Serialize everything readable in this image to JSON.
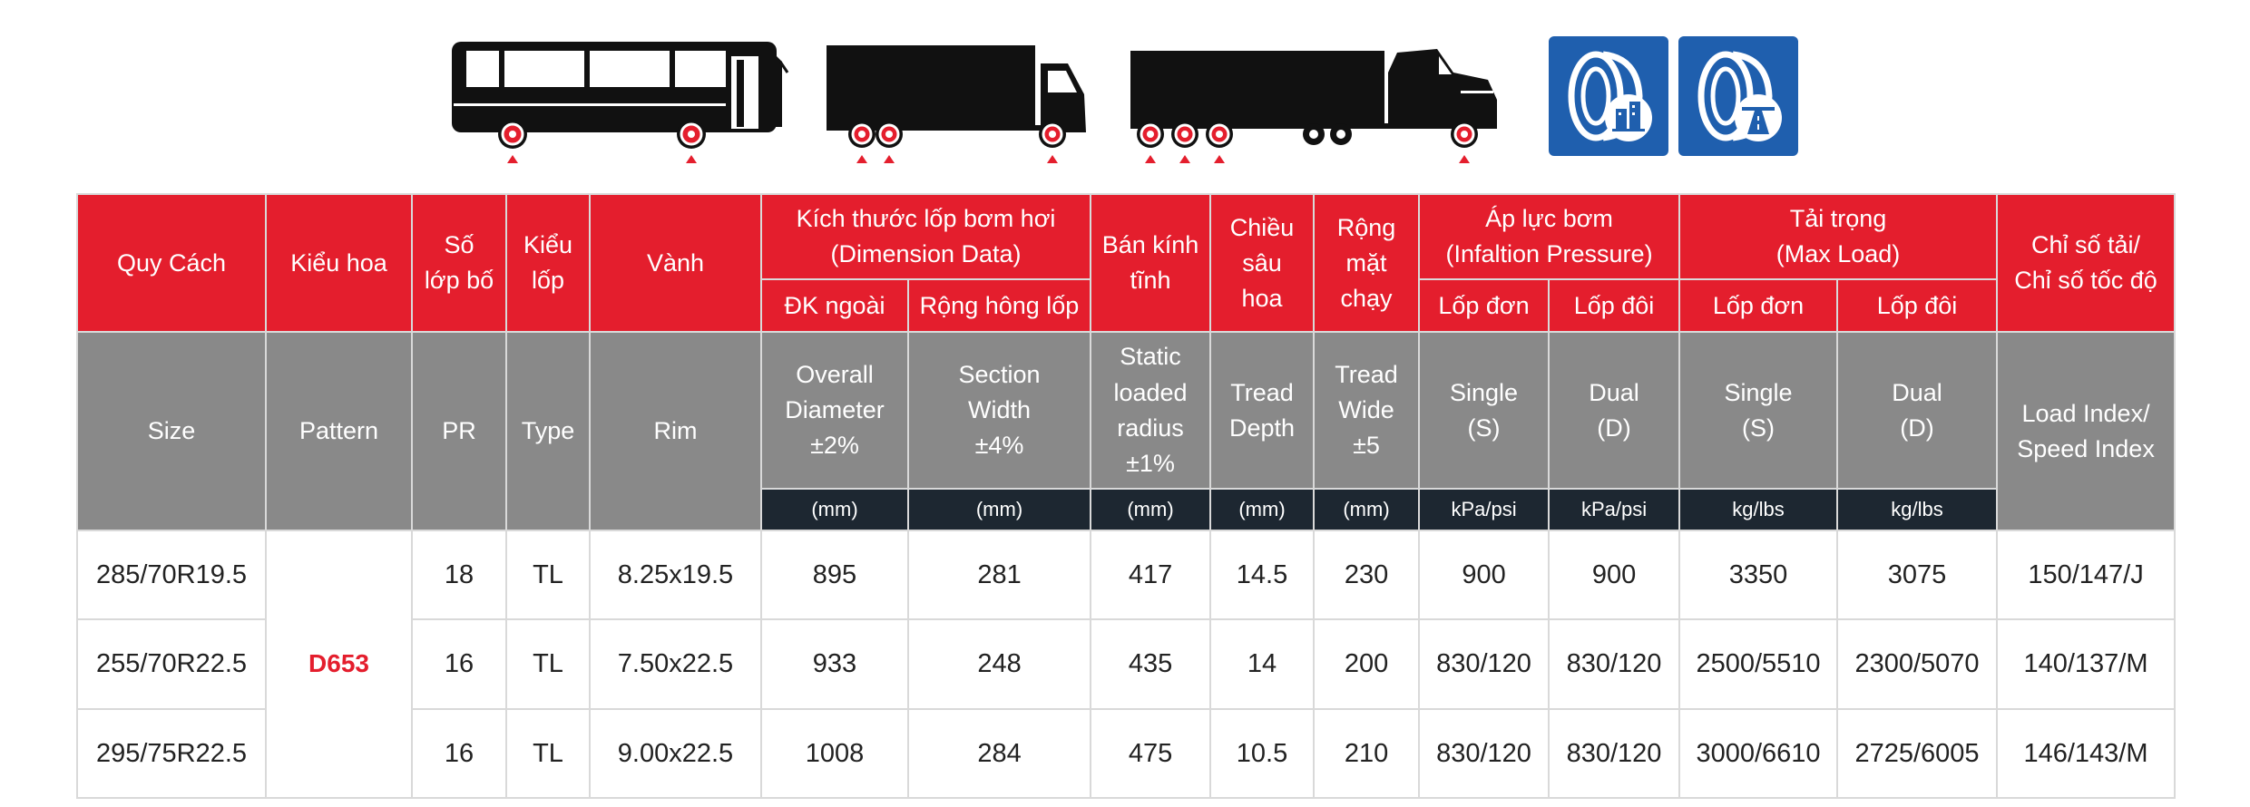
{
  "vehicle_icons": [
    {
      "name": "bus-icon"
    },
    {
      "name": "box-truck-icon"
    },
    {
      "name": "semi-trailer-truck-icon"
    }
  ],
  "usage_icons": [
    {
      "name": "tire-city-icon"
    },
    {
      "name": "tire-highway-icon"
    }
  ],
  "colors": {
    "header_red": "#e41e2d",
    "header_gray": "#898989",
    "unit_dark": "#1d2731",
    "badge_blue": "#1f5fae",
    "pattern_red": "#e41e2d"
  },
  "table": {
    "vi": {
      "size": "Quy Cách",
      "pattern": "Kiểu hoa",
      "pr": [
        "Số",
        "lớp bố"
      ],
      "type": [
        "Kiểu",
        "lốp"
      ],
      "rim": "Vành",
      "dimension_group": [
        "Kích thước lốp bơm hơi",
        "(Dimension Data)"
      ],
      "overall_diameter": "ĐK ngoài",
      "section_width": "Rộng hông lốp",
      "static_radius": [
        "Bán kính",
        "tĩnh"
      ],
      "tread_depth": [
        "Chiều",
        "sâu",
        "hoa"
      ],
      "tread_wide": [
        "Rộng",
        "mặt",
        "chạy"
      ],
      "pressure_group": [
        "Áp lực bơm",
        "(Infaltion Pressure)"
      ],
      "pressure_single": "Lốp đơn",
      "pressure_dual": "Lốp đôi",
      "load_group": [
        "Tải trọng",
        "(Max Load)"
      ],
      "load_single": "Lốp đơn",
      "load_dual": "Lốp đôi",
      "load_speed": [
        "Chỉ số tải/",
        "Chỉ số tốc độ"
      ]
    },
    "en": {
      "size": "Size",
      "pattern": "Pattern",
      "pr": "PR",
      "type": "Type",
      "rim": "Rim",
      "overall_diameter": [
        "Overall",
        "Diameter",
        "±2%"
      ],
      "section_width": [
        "Section",
        "Width",
        "±4%"
      ],
      "static_radius": [
        "Static",
        "loaded",
        "radius",
        "±1%"
      ],
      "tread_depth": [
        "Tread",
        "Depth"
      ],
      "tread_wide": [
        "Tread",
        "Wide",
        "±5"
      ],
      "pressure_single": [
        "Single",
        "(S)"
      ],
      "pressure_dual": [
        "Dual",
        "(D)"
      ],
      "load_single": [
        "Single",
        "(S)"
      ],
      "load_dual": [
        "Dual",
        "(D)"
      ],
      "load_speed": [
        "Load Index/",
        "Speed Index"
      ]
    },
    "units": [
      "(mm)",
      "(mm)",
      "(mm)",
      "(mm)",
      "(mm)",
      "kPa/psi",
      "kPa/psi",
      "kg/lbs",
      "kg/lbs"
    ],
    "pattern_value": "D653",
    "rows": [
      {
        "size": "285/70R19.5",
        "pr": "18",
        "type": "TL",
        "rim": "8.25x19.5",
        "od": "895",
        "sw": "281",
        "slr": "417",
        "td": "14.5",
        "tw": "230",
        "ps": "900",
        "pd": "900",
        "ls": "3350",
        "ld": "3075",
        "li": "150/147/J"
      },
      {
        "size": "255/70R22.5",
        "pr": "16",
        "type": "TL",
        "rim": "7.50x22.5",
        "od": "933",
        "sw": "248",
        "slr": "435",
        "td": "14",
        "tw": "200",
        "ps": "830/120",
        "pd": "830/120",
        "ls": "2500/5510",
        "ld": "2300/5070",
        "li": "140/137/M"
      },
      {
        "size": "295/75R22.5",
        "pr": "16",
        "type": "TL",
        "rim": "9.00x22.5",
        "od": "1008",
        "sw": "284",
        "slr": "475",
        "td": "10.5",
        "tw": "210",
        "ps": "830/120",
        "pd": "830/120",
        "ls": "3000/6610",
        "ld": "2725/6005",
        "li": "146/143/M"
      }
    ]
  }
}
